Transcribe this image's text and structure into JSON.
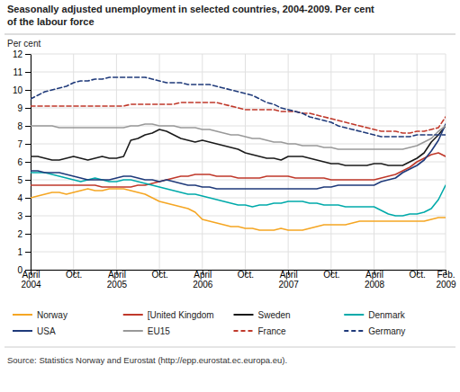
{
  "chart_data": {
    "type": "line",
    "title": "Seasonally adjusted unemployment in selected countries, 2004-2009. Per cent\nof the labour force",
    "ylabel": "Per cent",
    "annotations": [
      "Source: Statistics Norway and Eurostat (http://epp.eurostat.ec.europa.eu)."
    ],
    "categories": [
      "April\n2004",
      null,
      null,
      null,
      null,
      null,
      "Oct.",
      null,
      null,
      null,
      null,
      null,
      "April\n2005",
      null,
      null,
      null,
      null,
      null,
      "Oct.",
      null,
      null,
      null,
      null,
      null,
      "April\n2006",
      null,
      null,
      null,
      null,
      null,
      "Oct.",
      null,
      null,
      null,
      null,
      null,
      "April\n2007",
      null,
      null,
      null,
      null,
      null,
      "Oct.",
      null,
      null,
      null,
      null,
      null,
      "April\n2008",
      null,
      null,
      null,
      null,
      null,
      "Oct.",
      null,
      null,
      null,
      "Feb.\n2009"
    ],
    "ylim": [
      0,
      12
    ],
    "yticks": [
      0,
      1,
      2,
      3,
      4,
      5,
      6,
      7,
      8,
      9,
      10,
      11,
      12
    ],
    "grid": true,
    "series": [
      {
        "name": "Norway",
        "color": "#f5a623",
        "line_style": "solid",
        "values": [
          4.0,
          4.1,
          4.2,
          4.3,
          4.3,
          4.2,
          4.3,
          4.4,
          4.5,
          4.4,
          4.4,
          4.5,
          4.5,
          4.5,
          4.4,
          4.3,
          4.2,
          4.0,
          3.8,
          3.7,
          3.6,
          3.5,
          3.4,
          3.2,
          2.8,
          2.7,
          2.6,
          2.5,
          2.4,
          2.4,
          2.3,
          2.3,
          2.2,
          2.2,
          2.2,
          2.3,
          2.2,
          2.2,
          2.2,
          2.3,
          2.4,
          2.5,
          2.5,
          2.5,
          2.5,
          2.6,
          2.7,
          2.7,
          2.7,
          2.7,
          2.7,
          2.7,
          2.7,
          2.7,
          2.7,
          2.7,
          2.8,
          2.9,
          2.9
        ]
      },
      {
        "name": "[United Kingdom",
        "color": "#c0392b",
        "line_style": "solid",
        "values": [
          4.7,
          4.7,
          4.7,
          4.7,
          4.7,
          4.7,
          4.7,
          4.7,
          4.7,
          4.7,
          4.6,
          4.6,
          4.6,
          4.6,
          4.6,
          4.7,
          4.7,
          4.8,
          4.9,
          5.0,
          5.1,
          5.2,
          5.2,
          5.3,
          5.3,
          5.3,
          5.2,
          5.2,
          5.2,
          5.1,
          5.1,
          5.1,
          5.1,
          5.2,
          5.2,
          5.2,
          5.2,
          5.1,
          5.1,
          5.1,
          5.1,
          5.1,
          5.0,
          5.0,
          5.0,
          5.0,
          5.0,
          5.0,
          5.0,
          5.1,
          5.2,
          5.3,
          5.5,
          5.7,
          6.0,
          6.2,
          6.4,
          6.5,
          6.3
        ]
      },
      {
        "name": "Sweden",
        "color": "#1a1a1a",
        "line_style": "solid",
        "values": [
          6.3,
          6.3,
          6.2,
          6.1,
          6.1,
          6.2,
          6.3,
          6.2,
          6.1,
          6.2,
          6.3,
          6.2,
          6.2,
          6.3,
          7.2,
          7.3,
          7.5,
          7.6,
          7.8,
          7.7,
          7.5,
          7.3,
          7.2,
          7.1,
          7.2,
          7.1,
          7.0,
          6.9,
          6.8,
          6.7,
          6.5,
          6.4,
          6.3,
          6.2,
          6.2,
          6.1,
          6.3,
          6.3,
          6.3,
          6.2,
          6.1,
          6.0,
          5.9,
          5.9,
          5.8,
          5.8,
          5.8,
          5.8,
          5.9,
          5.9,
          5.8,
          5.8,
          5.8,
          6.0,
          6.2,
          6.5,
          7.1,
          7.5,
          8.0
        ]
      },
      {
        "name": "Denmark",
        "color": "#00aaaa",
        "line_style": "solid",
        "values": [
          5.4,
          5.4,
          5.4,
          5.3,
          5.2,
          5.1,
          5.0,
          4.9,
          5.0,
          5.1,
          5.0,
          4.9,
          4.9,
          5.0,
          5.0,
          4.9,
          4.8,
          4.7,
          4.6,
          4.5,
          4.4,
          4.3,
          4.2,
          4.2,
          4.1,
          4.0,
          3.9,
          3.8,
          3.7,
          3.6,
          3.6,
          3.5,
          3.6,
          3.6,
          3.7,
          3.7,
          3.8,
          3.8,
          3.8,
          3.7,
          3.7,
          3.6,
          3.6,
          3.6,
          3.5,
          3.5,
          3.5,
          3.5,
          3.5,
          3.3,
          3.1,
          3.0,
          3.0,
          3.1,
          3.1,
          3.2,
          3.4,
          3.9,
          4.7
        ]
      },
      {
        "name": "USA",
        "color": "#1f3a7a",
        "line_style": "solid",
        "values": [
          5.5,
          5.5,
          5.4,
          5.4,
          5.4,
          5.3,
          5.2,
          5.1,
          5.0,
          5.0,
          5.0,
          5.0,
          5.1,
          5.2,
          5.2,
          5.1,
          5.0,
          5.0,
          4.9,
          5.0,
          4.9,
          4.8,
          4.7,
          4.7,
          4.6,
          4.6,
          4.5,
          4.5,
          4.5,
          4.5,
          4.5,
          4.5,
          4.5,
          4.5,
          4.5,
          4.5,
          4.5,
          4.5,
          4.5,
          4.5,
          4.5,
          4.6,
          4.6,
          4.7,
          4.7,
          4.7,
          4.7,
          4.7,
          4.7,
          4.9,
          5.0,
          5.1,
          5.4,
          5.6,
          5.8,
          6.1,
          6.6,
          7.2,
          8.1
        ]
      },
      {
        "name": "EU15",
        "color": "#999999",
        "line_style": "solid",
        "values": [
          8.0,
          8.0,
          8.0,
          8.0,
          7.9,
          7.9,
          7.9,
          7.9,
          7.9,
          7.9,
          7.9,
          7.9,
          7.9,
          7.9,
          8.0,
          8.0,
          8.1,
          8.1,
          8.0,
          8.0,
          8.0,
          7.9,
          7.9,
          7.9,
          7.8,
          7.8,
          7.7,
          7.6,
          7.5,
          7.5,
          7.4,
          7.3,
          7.3,
          7.2,
          7.1,
          7.1,
          7.0,
          7.0,
          6.9,
          6.9,
          6.9,
          6.8,
          6.8,
          6.7,
          6.7,
          6.7,
          6.7,
          6.7,
          6.7,
          6.7,
          6.7,
          6.7,
          6.7,
          6.8,
          6.9,
          7.1,
          7.3,
          7.7,
          8.0
        ]
      },
      {
        "name": "France",
        "color": "#c0392b",
        "line_style": "dashed",
        "values": [
          9.1,
          9.1,
          9.1,
          9.1,
          9.1,
          9.1,
          9.1,
          9.1,
          9.1,
          9.1,
          9.1,
          9.1,
          9.1,
          9.1,
          9.2,
          9.2,
          9.2,
          9.2,
          9.2,
          9.2,
          9.2,
          9.3,
          9.3,
          9.3,
          9.3,
          9.3,
          9.3,
          9.2,
          9.1,
          9.0,
          8.9,
          8.9,
          8.9,
          8.9,
          8.9,
          8.8,
          8.8,
          8.8,
          8.7,
          8.7,
          8.6,
          8.5,
          8.4,
          8.3,
          8.2,
          8.1,
          8.0,
          7.9,
          7.8,
          7.7,
          7.7,
          7.7,
          7.6,
          7.6,
          7.7,
          7.7,
          7.8,
          7.9,
          8.5
        ]
      },
      {
        "name": "Germany",
        "color": "#1f3a7a",
        "line_style": "dashed",
        "values": [
          9.5,
          9.7,
          9.9,
          10.0,
          10.1,
          10.2,
          10.4,
          10.5,
          10.5,
          10.6,
          10.6,
          10.7,
          10.7,
          10.7,
          10.7,
          10.7,
          10.7,
          10.6,
          10.5,
          10.4,
          10.4,
          10.4,
          10.3,
          10.3,
          10.3,
          10.3,
          10.2,
          10.1,
          10.0,
          9.9,
          9.8,
          9.7,
          9.5,
          9.3,
          9.2,
          9.0,
          8.9,
          8.8,
          8.7,
          8.5,
          8.4,
          8.3,
          8.2,
          8.0,
          7.9,
          7.8,
          7.7,
          7.6,
          7.5,
          7.4,
          7.4,
          7.4,
          7.4,
          7.4,
          7.5,
          7.5,
          7.5,
          7.5,
          7.5
        ]
      }
    ]
  }
}
